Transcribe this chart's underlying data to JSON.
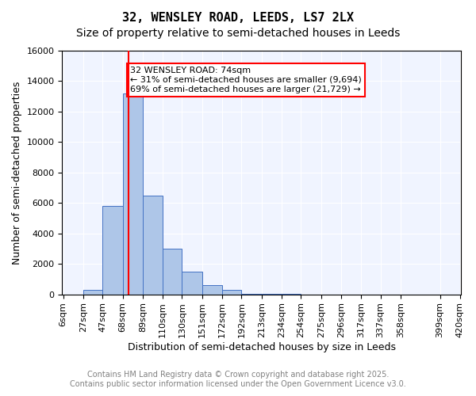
{
  "title_line1": "32, WENSLEY ROAD, LEEDS, LS7 2LX",
  "title_line2": "Size of property relative to semi-detached houses in Leeds",
  "xlabel": "Distribution of semi-detached houses by size in Leeds",
  "ylabel": "Number of semi-detached properties",
  "bar_labels": [
    "6sqm",
    "27sqm",
    "47sqm",
    "68sqm",
    "89sqm",
    "110sqm",
    "130sqm",
    "151sqm",
    "172sqm",
    "192sqm",
    "213sqm",
    "234sqm",
    "254sqm",
    "275sqm",
    "296sqm",
    "317sqm",
    "337sqm",
    "358sqm",
    "399sqm",
    "420sqm"
  ],
  "bar_values": [
    0,
    300,
    5800,
    13200,
    6500,
    3000,
    1500,
    600,
    300,
    50,
    30,
    20,
    10,
    5,
    3,
    2,
    1,
    1,
    0,
    0
  ],
  "bar_color": "#aec6e8",
  "bar_edge_color": "#4472c4",
  "red_line_x": 74,
  "bin_edges": [
    6,
    27,
    47,
    68,
    89,
    110,
    130,
    151,
    172,
    192,
    213,
    234,
    254,
    275,
    296,
    317,
    337,
    358,
    399,
    420
  ],
  "annotation_box_text": "32 WENSLEY ROAD: 74sqm\n← 31% of semi-detached houses are smaller (9,694)\n69% of semi-detached houses are larger (21,729) →",
  "annotation_box_color": "red",
  "ylim": [
    0,
    16000
  ],
  "yticks": [
    0,
    2000,
    4000,
    6000,
    8000,
    10000,
    12000,
    14000,
    16000
  ],
  "footer_line1": "Contains HM Land Registry data © Crown copyright and database right 2025.",
  "footer_line2": "Contains public sector information licensed under the Open Government Licence v3.0.",
  "background_color": "#f0f4ff",
  "grid_color": "#ffffff",
  "title_fontsize": 11,
  "subtitle_fontsize": 10,
  "axis_label_fontsize": 9,
  "tick_fontsize": 8,
  "annotation_fontsize": 8,
  "footer_fontsize": 7
}
